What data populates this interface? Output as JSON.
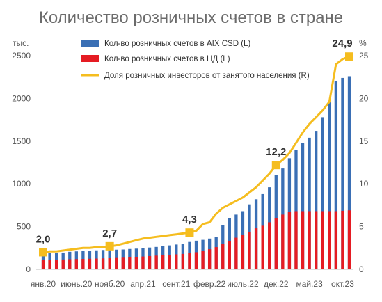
{
  "chart_data": {
    "type": "bar",
    "title": "Количество розничных счетов в стране",
    "y_left_unit": "тыс.",
    "y_right_unit": "%",
    "ylim_left": [
      0,
      2500
    ],
    "ylim_right": [
      0,
      25
    ],
    "y_left_ticks": [
      "0",
      "500",
      "1000",
      "1500",
      "2000",
      "2500"
    ],
    "y_right_ticks": [
      "0",
      "5",
      "10",
      "15",
      "20",
      "25"
    ],
    "x_tick_labels": [
      "янв.20",
      "июнь.20",
      "нояб.20",
      "апр.21",
      "сент.21",
      "февр.22",
      "июль.22",
      "дек.22",
      "май.23",
      "окт.23"
    ],
    "x": [
      "янв.20",
      "февр.20",
      "март.20",
      "апр.20",
      "май.20",
      "июнь.20",
      "июль.20",
      "авг.20",
      "сент.20",
      "окт.20",
      "нояб.20",
      "дек.20",
      "янв.21",
      "февр.21",
      "март.21",
      "апр.21",
      "май.21",
      "июнь.21",
      "июль.21",
      "авг.21",
      "сент.21",
      "окт.21",
      "нояб.21",
      "дек.21",
      "янв.22",
      "февр.22",
      "март.22",
      "апр.22",
      "май.22",
      "июнь.22",
      "июль.22",
      "авг.22",
      "сент.22",
      "окт.22",
      "нояб.22",
      "дек.22",
      "янв.23",
      "февр.23",
      "март.23",
      "апр.23",
      "май.23",
      "июнь.23",
      "июль.23",
      "авг.23",
      "сент.23",
      "окт.23",
      "нояб.23"
    ],
    "grid": false,
    "legend_position": "top-center",
    "series": [
      {
        "name": "Кол-во розничных счетов в AIX CSD (L)",
        "type": "bar",
        "axis": "left",
        "color": "#3a6fb5",
        "values": [
          185,
          190,
          192,
          196,
          205,
          210,
          215,
          218,
          222,
          226,
          228,
          230,
          232,
          238,
          242,
          245,
          255,
          262,
          270,
          280,
          290,
          300,
          320,
          335,
          345,
          360,
          380,
          520,
          600,
          640,
          680,
          760,
          820,
          880,
          960,
          1100,
          1180,
          1300,
          1400,
          1480,
          1540,
          1620,
          1780,
          1960,
          2200,
          2240,
          2260
        ]
      },
      {
        "name": "Кол-во розничных счетов в ЦД (L)",
        "type": "bar",
        "axis": "left",
        "color": "#e51c23",
        "values": [
          110,
          112,
          113,
          115,
          118,
          120,
          122,
          124,
          126,
          128,
          130,
          133,
          136,
          140,
          145,
          150,
          155,
          160,
          165,
          170,
          175,
          180,
          190,
          200,
          215,
          235,
          260,
          300,
          330,
          370,
          400,
          440,
          480,
          510,
          550,
          600,
          640,
          670,
          680,
          680,
          680,
          680,
          680,
          680,
          680,
          685,
          690
        ]
      },
      {
        "name": "Доля розничных инвесторов от занятого населения (R)",
        "type": "line",
        "axis": "right",
        "color": "#f5bd1f",
        "values": [
          2.0,
          2.1,
          2.1,
          2.2,
          2.3,
          2.4,
          2.5,
          2.5,
          2.6,
          2.6,
          2.7,
          2.8,
          3.0,
          3.2,
          3.4,
          3.6,
          3.7,
          3.8,
          3.9,
          4.0,
          4.1,
          4.2,
          4.3,
          4.5,
          5.3,
          5.5,
          6.5,
          7.2,
          7.6,
          8.0,
          8.4,
          9.0,
          9.6,
          10.4,
          11.2,
          12.2,
          12.8,
          13.6,
          14.8,
          16.0,
          17.0,
          17.8,
          18.6,
          19.6,
          24.0,
          24.6,
          24.9
        ]
      }
    ],
    "annotations": [
      {
        "label": "2,0",
        "x": "янв.20",
        "value": 2.0
      },
      {
        "label": "2,7",
        "x": "нояб.20",
        "value": 2.7
      },
      {
        "label": "4,3",
        "x": "нояб.21",
        "value": 4.3
      },
      {
        "label": "12,2",
        "x": "дек.22",
        "value": 12.2
      },
      {
        "label": "24,9",
        "x": "нояб.23",
        "value": 24.9
      }
    ]
  }
}
